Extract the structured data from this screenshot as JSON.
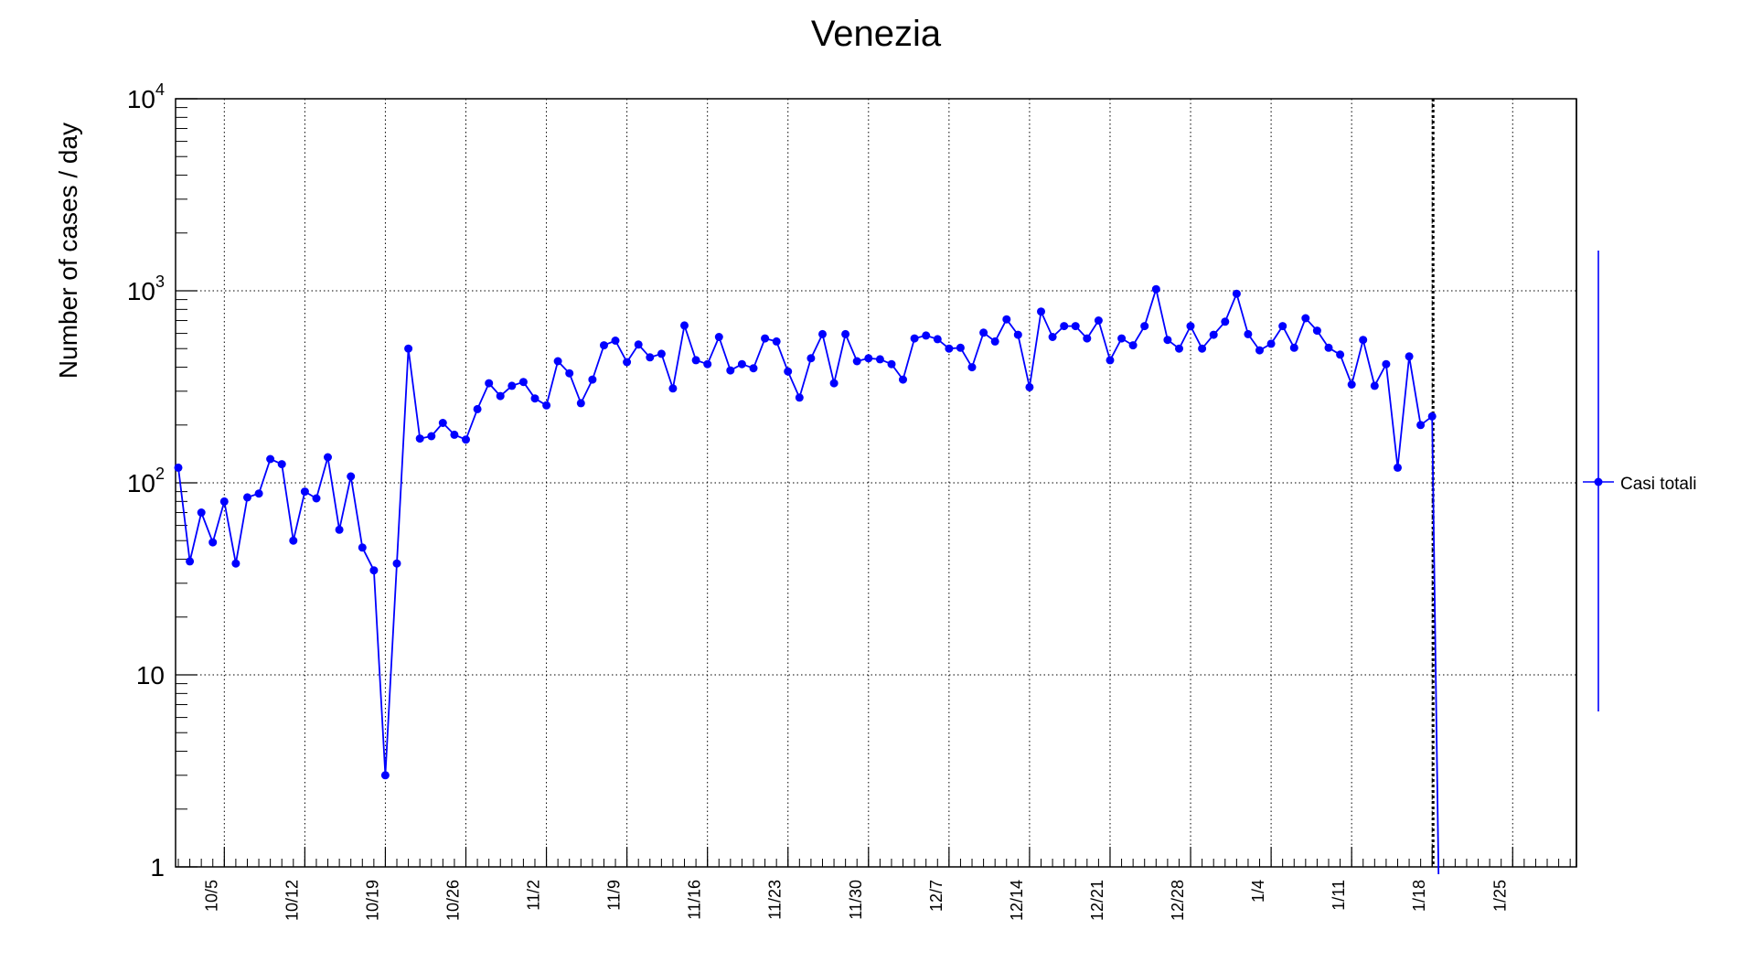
{
  "chart_data": {
    "type": "line",
    "title": "Venezia",
    "ylabel": "Number of cases / day",
    "xlabel": "",
    "yscale": "log",
    "ylim": [
      1,
      10000
    ],
    "y_tick_labels": [
      {
        "value": 1,
        "base": "1",
        "exp": ""
      },
      {
        "value": 10,
        "base": "10",
        "exp": ""
      },
      {
        "value": 100,
        "base": "10",
        "exp": "2"
      },
      {
        "value": 1000,
        "base": "10",
        "exp": "3"
      },
      {
        "value": 10000,
        "base": "10",
        "exp": "4"
      }
    ],
    "x_tick_labels": [
      "10/5",
      "10/12",
      "10/19",
      "10/26",
      "11/2",
      "11/9",
      "11/16",
      "11/23",
      "11/30",
      "12/7",
      "12/14",
      "12/21",
      "12/28",
      "1/4",
      "1/11",
      "1/18",
      "1/25"
    ],
    "grid": true,
    "marker_line_date": "1/18",
    "legend": {
      "placement": "right",
      "label": "Casi totali"
    },
    "series": [
      {
        "name": "Casi totali",
        "color": "#0000ff",
        "start_date": "10/1",
        "values": [
          120,
          39,
          70,
          49,
          80,
          38,
          84,
          88,
          133,
          125,
          50,
          90,
          83,
          136,
          57,
          108,
          46,
          35,
          3,
          38,
          500,
          170,
          175,
          205,
          178,
          168,
          242,
          330,
          283,
          320,
          335,
          275,
          253,
          430,
          372,
          260,
          345,
          520,
          550,
          425,
          525,
          450,
          470,
          310,
          660,
          435,
          415,
          575,
          385,
          415,
          395,
          565,
          545,
          380,
          278,
          445,
          595,
          330,
          595,
          430,
          445,
          440,
          415,
          345,
          565,
          585,
          560,
          500,
          505,
          400,
          605,
          545,
          710,
          590,
          315,
          780,
          575,
          655,
          655,
          565,
          700,
          435,
          565,
          520,
          655,
          1020,
          555,
          500,
          655,
          500,
          590,
          690,
          965,
          595,
          490,
          530,
          655,
          505,
          720,
          620,
          505,
          465,
          325,
          555,
          320,
          415,
          120,
          455,
          200,
          222
        ]
      }
    ]
  }
}
